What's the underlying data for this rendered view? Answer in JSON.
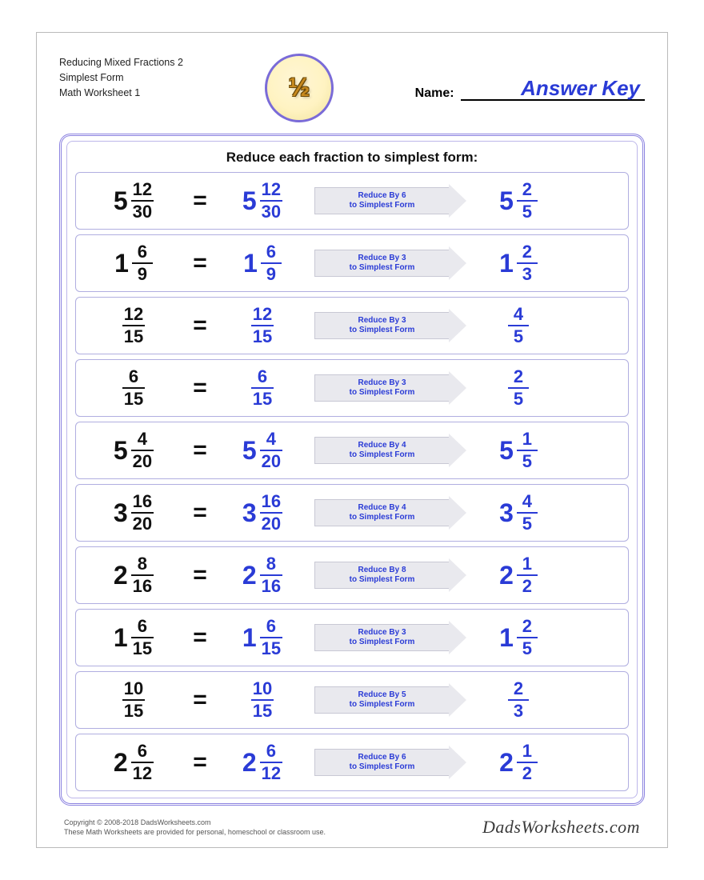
{
  "header": {
    "title_l1": "Reducing Mixed Fractions 2",
    "title_l2": "Simplest Form",
    "title_l3": "Math Worksheet 1",
    "logo_glyph": "½",
    "name_label": "Name:",
    "name_value": "Answer Key"
  },
  "panel": {
    "title": "Reduce each fraction to simplest form:"
  },
  "colors": {
    "question": "#111111",
    "answer": "#2a3bd6",
    "panel_border": "#8b82e0",
    "row_border": "#b0aee0",
    "arrow_fill": "#e9e9ee",
    "arrow_border": "#c8c8d4",
    "arrow_text": "#2a3bd6"
  },
  "problems": [
    {
      "q": {
        "w": "5",
        "n": "12",
        "d": "30"
      },
      "m": {
        "w": "5",
        "n": "12",
        "d": "30"
      },
      "hint_l1": "Reduce By 6",
      "hint_l2": "to Simplest Form",
      "a": {
        "w": "5",
        "n": "2",
        "d": "5"
      }
    },
    {
      "q": {
        "w": "1",
        "n": "6",
        "d": "9"
      },
      "m": {
        "w": "1",
        "n": "6",
        "d": "9"
      },
      "hint_l1": "Reduce By 3",
      "hint_l2": "to Simplest Form",
      "a": {
        "w": "1",
        "n": "2",
        "d": "3"
      }
    },
    {
      "q": {
        "w": "",
        "n": "12",
        "d": "15"
      },
      "m": {
        "w": "",
        "n": "12",
        "d": "15"
      },
      "hint_l1": "Reduce By 3",
      "hint_l2": "to Simplest Form",
      "a": {
        "w": "",
        "n": "4",
        "d": "5"
      }
    },
    {
      "q": {
        "w": "",
        "n": "6",
        "d": "15"
      },
      "m": {
        "w": "",
        "n": "6",
        "d": "15"
      },
      "hint_l1": "Reduce By 3",
      "hint_l2": "to Simplest Form",
      "a": {
        "w": "",
        "n": "2",
        "d": "5"
      }
    },
    {
      "q": {
        "w": "5",
        "n": "4",
        "d": "20"
      },
      "m": {
        "w": "5",
        "n": "4",
        "d": "20"
      },
      "hint_l1": "Reduce By 4",
      "hint_l2": "to Simplest Form",
      "a": {
        "w": "5",
        "n": "1",
        "d": "5"
      }
    },
    {
      "q": {
        "w": "3",
        "n": "16",
        "d": "20"
      },
      "m": {
        "w": "3",
        "n": "16",
        "d": "20"
      },
      "hint_l1": "Reduce By 4",
      "hint_l2": "to Simplest Form",
      "a": {
        "w": "3",
        "n": "4",
        "d": "5"
      }
    },
    {
      "q": {
        "w": "2",
        "n": "8",
        "d": "16"
      },
      "m": {
        "w": "2",
        "n": "8",
        "d": "16"
      },
      "hint_l1": "Reduce By 8",
      "hint_l2": "to Simplest Form",
      "a": {
        "w": "2",
        "n": "1",
        "d": "2"
      }
    },
    {
      "q": {
        "w": "1",
        "n": "6",
        "d": "15"
      },
      "m": {
        "w": "1",
        "n": "6",
        "d": "15"
      },
      "hint_l1": "Reduce By 3",
      "hint_l2": "to Simplest Form",
      "a": {
        "w": "1",
        "n": "2",
        "d": "5"
      }
    },
    {
      "q": {
        "w": "",
        "n": "10",
        "d": "15"
      },
      "m": {
        "w": "",
        "n": "10",
        "d": "15"
      },
      "hint_l1": "Reduce By 5",
      "hint_l2": "to Simplest Form",
      "a": {
        "w": "",
        "n": "2",
        "d": "3"
      }
    },
    {
      "q": {
        "w": "2",
        "n": "6",
        "d": "12"
      },
      "m": {
        "w": "2",
        "n": "6",
        "d": "12"
      },
      "hint_l1": "Reduce By 6",
      "hint_l2": "to Simplest Form",
      "a": {
        "w": "2",
        "n": "1",
        "d": "2"
      }
    }
  ],
  "footer": {
    "copyright": "Copyright © 2008-2018 DadsWorksheets.com",
    "note": "These Math Worksheets are provided for personal, homeschool or classroom use.",
    "brand": "DadsWorksheets.com"
  },
  "eq_sign": "="
}
